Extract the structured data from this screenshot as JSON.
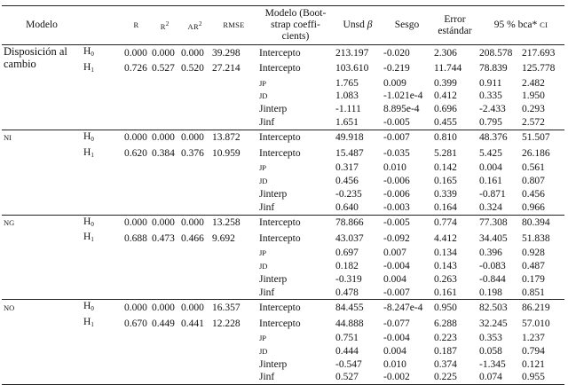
{
  "headers": {
    "modelo": "Modelo",
    "r": "R",
    "r2": "R",
    "r2_sup": "2",
    "ar2": "AR",
    "ar2_sup": "2",
    "rmse": "RMSE",
    "modelo_boot": "Modelo (Boot-strap coeffi-cients)",
    "unsd_beta_pre": "Unsd",
    "unsd_beta_sym": "β",
    "sesgo": "Sesgo",
    "error": "Error estándar",
    "ci_pre": "95 % bca*",
    "ci_sc": "CI"
  },
  "groups": [
    {
      "name": "Disposición al cambio",
      "name_sc": false,
      "rows": [
        {
          "h": "H",
          "hsub": "0",
          "r": "0.000",
          "r2": "0.000",
          "ar2": "0.000",
          "rmse": "39.298",
          "term": "Intercepto",
          "term_sc": false,
          "b": "213.197",
          "sesgo": "-0.020",
          "err": "2.306",
          "lo": "208.578",
          "hi": "217.693"
        },
        {
          "h": "H",
          "hsub": "1",
          "r": "0.726",
          "r2": "0.527",
          "ar2": "0.520",
          "rmse": "27.214",
          "term": "Intercepto",
          "term_sc": false,
          "b": "103.610",
          "sesgo": "-0.219",
          "err": "11.744",
          "lo": "78.839",
          "hi": "125.778"
        },
        {
          "h": "",
          "hsub": "",
          "r": "",
          "r2": "",
          "ar2": "",
          "rmse": "",
          "term": "JP",
          "term_sc": true,
          "b": "1.765",
          "sesgo": "0.009",
          "err": "0.399",
          "lo": "0.911",
          "hi": "2.482"
        },
        {
          "h": "",
          "hsub": "",
          "r": "",
          "r2": "",
          "ar2": "",
          "rmse": "",
          "term": "JD",
          "term_sc": true,
          "b": "1.083",
          "sesgo": "-1.021e-4",
          "err": "0.412",
          "lo": "0.335",
          "hi": "1.950"
        },
        {
          "h": "",
          "hsub": "",
          "r": "",
          "r2": "",
          "ar2": "",
          "rmse": "",
          "term": "Jinterp",
          "term_sc": false,
          "b": "-1.111",
          "sesgo": "8.895e-4",
          "err": "0.696",
          "lo": "-2.433",
          "hi": "0.293"
        },
        {
          "h": "",
          "hsub": "",
          "r": "",
          "r2": "",
          "ar2": "",
          "rmse": "",
          "term": "Jinf",
          "term_sc": false,
          "b": "1.651",
          "sesgo": "-0.005",
          "err": "0.455",
          "lo": "0.795",
          "hi": "2.572"
        }
      ]
    },
    {
      "name": "NI",
      "name_sc": true,
      "rows": [
        {
          "h": "H",
          "hsub": "0",
          "r": "0.000",
          "r2": "0.000",
          "ar2": "0.000",
          "rmse": "13.872",
          "term": "Intercepto",
          "term_sc": false,
          "b": "49.918",
          "sesgo": "-0.007",
          "err": "0.810",
          "lo": "48.376",
          "hi": "51.507"
        },
        {
          "h": "H",
          "hsub": "1",
          "r": "0.620",
          "r2": "0.384",
          "ar2": "0.376",
          "rmse": "10.959",
          "term": "Intercepto",
          "term_sc": false,
          "b": "15.487",
          "sesgo": "-0.035",
          "err": "5.281",
          "lo": "5.425",
          "hi": "26.186"
        },
        {
          "h": "",
          "hsub": "",
          "r": "",
          "r2": "",
          "ar2": "",
          "rmse": "",
          "term": "JP",
          "term_sc": true,
          "b": "0.317",
          "sesgo": "0.010",
          "err": "0.142",
          "lo": "0.004",
          "hi": "0.561"
        },
        {
          "h": "",
          "hsub": "",
          "r": "",
          "r2": "",
          "ar2": "",
          "rmse": "",
          "term": "JD",
          "term_sc": true,
          "b": "0.456",
          "sesgo": "-0.006",
          "err": "0.165",
          "lo": "0.161",
          "hi": "0.807"
        },
        {
          "h": "",
          "hsub": "",
          "r": "",
          "r2": "",
          "ar2": "",
          "rmse": "",
          "term": "Jinterp",
          "term_sc": false,
          "b": "-0.235",
          "sesgo": "-0.006",
          "err": "0.339",
          "lo": "-0.871",
          "hi": "0.456"
        },
        {
          "h": "",
          "hsub": "",
          "r": "",
          "r2": "",
          "ar2": "",
          "rmse": "",
          "term": "Jinf",
          "term_sc": false,
          "b": "0.640",
          "sesgo": "-0.003",
          "err": "0.164",
          "lo": "0.324",
          "hi": "0.966"
        }
      ]
    },
    {
      "name": "NG",
      "name_sc": true,
      "rows": [
        {
          "h": "H",
          "hsub": "0",
          "r": "0.000",
          "r2": "0.000",
          "ar2": "0.000",
          "rmse": "13.258",
          "term": "Intercepto",
          "term_sc": false,
          "b": "78.866",
          "sesgo": "-0.005",
          "err": "0.774",
          "lo": "77.308",
          "hi": "80.394"
        },
        {
          "h": "H",
          "hsub": "1",
          "r": "0.688",
          "r2": "0.473",
          "ar2": "0.466",
          "rmse": "9.692",
          "term": "Intercepto",
          "term_sc": false,
          "b": "43.037",
          "sesgo": "-0.092",
          "err": "4.412",
          "lo": "34.405",
          "hi": "51.838"
        },
        {
          "h": "",
          "hsub": "",
          "r": "",
          "r2": "",
          "ar2": "",
          "rmse": "",
          "term": "JP",
          "term_sc": true,
          "b": "0.697",
          "sesgo": "0.007",
          "err": "0.134",
          "lo": "0.396",
          "hi": "0.928"
        },
        {
          "h": "",
          "hsub": "",
          "r": "",
          "r2": "",
          "ar2": "",
          "rmse": "",
          "term": "JD",
          "term_sc": true,
          "b": "0.182",
          "sesgo": "-0.004",
          "err": "0.143",
          "lo": "-0.083",
          "hi": "0.487"
        },
        {
          "h": "",
          "hsub": "",
          "r": "",
          "r2": "",
          "ar2": "",
          "rmse": "",
          "term": "Jinterp",
          "term_sc": false,
          "b": "-0.319",
          "sesgo": "0.004",
          "err": "0.263",
          "lo": "-0.844",
          "hi": "0.179"
        },
        {
          "h": "",
          "hsub": "",
          "r": "",
          "r2": "",
          "ar2": "",
          "rmse": "",
          "term": "Jinf",
          "term_sc": false,
          "b": "0.478",
          "sesgo": "-0.007",
          "err": "0.161",
          "lo": "0.198",
          "hi": "0.851"
        }
      ]
    },
    {
      "name": "NO",
      "name_sc": true,
      "rows": [
        {
          "h": "H",
          "hsub": "0",
          "r": "0.000",
          "r2": "0.000",
          "ar2": "0.000",
          "rmse": "16.357",
          "term": "Intercepto",
          "term_sc": false,
          "b": "84.455",
          "sesgo": "-8.247e-4",
          "err": "0.950",
          "lo": "82.503",
          "hi": "86.219"
        },
        {
          "h": "H",
          "hsub": "1",
          "r": "0.670",
          "r2": "0.449",
          "ar2": "0.441",
          "rmse": "12.228",
          "term": "Intercepto",
          "term_sc": false,
          "b": "44.888",
          "sesgo": "-0.077",
          "err": "6.288",
          "lo": "32.245",
          "hi": "57.010"
        },
        {
          "h": "",
          "hsub": "",
          "r": "",
          "r2": "",
          "ar2": "",
          "rmse": "",
          "term": "JP",
          "term_sc": true,
          "b": "0.751",
          "sesgo": "-0.004",
          "err": "0.223",
          "lo": "0.353",
          "hi": "1.237"
        },
        {
          "h": "",
          "hsub": "",
          "r": "",
          "r2": "",
          "ar2": "",
          "rmse": "",
          "term": "JD",
          "term_sc": true,
          "b": "0.444",
          "sesgo": "0.004",
          "err": "0.187",
          "lo": "0.058",
          "hi": "0.794"
        },
        {
          "h": "",
          "hsub": "",
          "r": "",
          "r2": "",
          "ar2": "",
          "rmse": "",
          "term": "Jinterp",
          "term_sc": false,
          "b": "-0.547",
          "sesgo": "0.010",
          "err": "0.374",
          "lo": "-1.345",
          "hi": "0.121"
        },
        {
          "h": "",
          "hsub": "",
          "r": "",
          "r2": "",
          "ar2": "",
          "rmse": "",
          "term": "Jinf",
          "term_sc": false,
          "b": "0.527",
          "sesgo": "-0.002",
          "err": "0.225",
          "lo": "0.074",
          "hi": "0.955"
        }
      ]
    }
  ]
}
